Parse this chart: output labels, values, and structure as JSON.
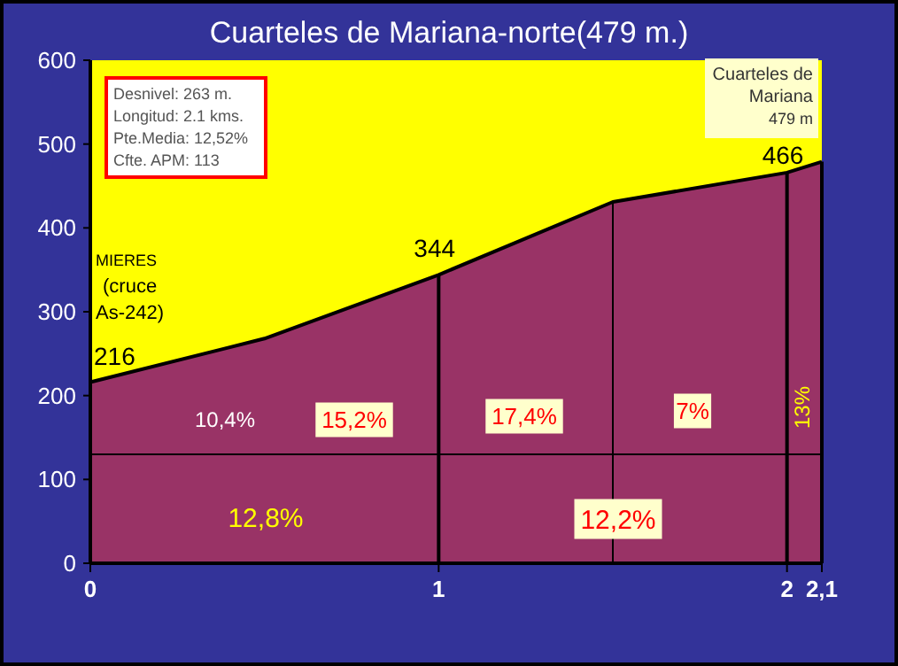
{
  "chart_data": {
    "type": "area",
    "title": "Cuarteles de Mariana-norte(479 m.)",
    "x": [
      0,
      0.5,
      1,
      1.5,
      2,
      2.1
    ],
    "series": [
      {
        "color": "#993366",
        "values": [
          216,
          268,
          344,
          431,
          466,
          479
        ],
        "value_labels": [
          "216",
          null,
          "344",
          null,
          "466",
          null
        ]
      }
    ],
    "xlim": [
      0,
      2.1
    ],
    "xticks": [
      0,
      1,
      2,
      {
        "value": 2.1,
        "label": "2,1"
      }
    ],
    "ylim": [
      0,
      600
    ],
    "yticks": [
      0,
      100,
      200,
      300,
      400,
      500,
      600
    ],
    "grid": false,
    "ref_lines": [
      {
        "axis": "x",
        "value": 1
      },
      {
        "axis": "x",
        "value": 1.5
      },
      {
        "axis": "x",
        "value": 2
      },
      {
        "axis": "y",
        "value": 130
      }
    ],
    "annotations": [
      "Desnivel: 263 m.",
      "Longitud: 2.1 kms.",
      "Pte.Media: 12,52%",
      "Cfte. APM: 113",
      "Cuarteles de\nMariana\n479 m",
      "MIERES\n(cruce\nAs-242)",
      "10,4%",
      "15,2%",
      "17,4%",
      "7%",
      "13%",
      "12,8%",
      "12,2%"
    ]
  }
}
